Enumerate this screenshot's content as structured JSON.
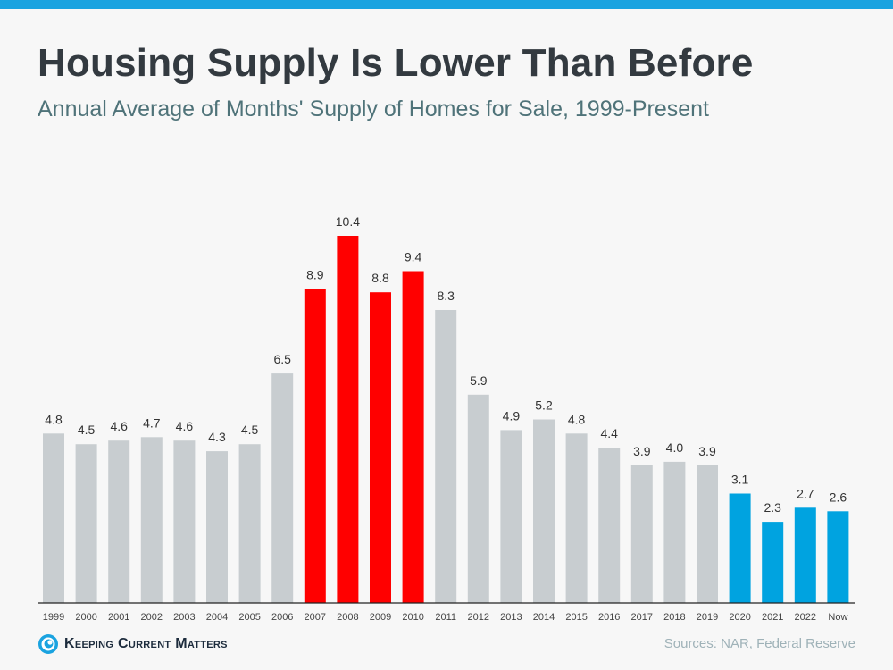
{
  "title": "Housing Supply Is Lower Than Before",
  "subtitle": "Annual Average of Months' Supply of Homes for Sale, 1999-Present",
  "brand": "Keeping Current Matters",
  "logo_icon": "kcm-swirl-icon",
  "source": "Sources: NAR, Federal Reserve",
  "colors": {
    "gray": "#c8cdd0",
    "red": "#ff0000",
    "blue": "#00a3e0",
    "accent_bar": "#1aa3e0"
  },
  "chart_data": {
    "type": "bar",
    "title": "Housing Supply Is Lower Than Before",
    "subtitle": "Annual Average of Months' Supply of Homes for Sale, 1999-Present",
    "xlabel": "",
    "ylabel": "",
    "ylim": [
      0,
      10.4
    ],
    "grid": false,
    "legend": "none",
    "categories": [
      "1999",
      "2000",
      "2001",
      "2002",
      "2003",
      "2004",
      "2005",
      "2006",
      "2007",
      "2008",
      "2009",
      "2010",
      "2011",
      "2012",
      "2013",
      "2014",
      "2015",
      "2016",
      "2017",
      "2018",
      "2019",
      "2020",
      "2021",
      "2022",
      "Now"
    ],
    "values": [
      4.8,
      4.5,
      4.6,
      4.7,
      4.6,
      4.3,
      4.5,
      6.5,
      8.9,
      10.4,
      8.8,
      9.4,
      8.3,
      5.9,
      4.9,
      5.2,
      4.8,
      4.4,
      3.9,
      4.0,
      3.9,
      3.1,
      2.3,
      2.7,
      2.6
    ],
    "value_labels": [
      "4.8",
      "4.5",
      "4.6",
      "4.7",
      "4.6",
      "4.3",
      "4.5",
      "6.5",
      "8.9",
      "10.4",
      "8.8",
      "9.4",
      "8.3",
      "5.9",
      "4.9",
      "5.2",
      "4.8",
      "4.4",
      "3.9",
      "4.0",
      "3.9",
      "3.1",
      "2.3",
      "2.7",
      "2.6"
    ],
    "bar_colors": [
      "gray",
      "gray",
      "gray",
      "gray",
      "gray",
      "gray",
      "gray",
      "gray",
      "red",
      "red",
      "red",
      "red",
      "gray",
      "gray",
      "gray",
      "gray",
      "gray",
      "gray",
      "gray",
      "gray",
      "gray",
      "blue",
      "blue",
      "blue",
      "blue"
    ]
  }
}
